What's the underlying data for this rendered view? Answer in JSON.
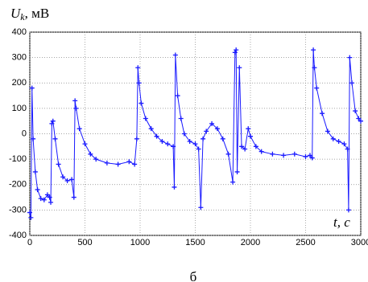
{
  "chart_data": {
    "type": "line",
    "y_label": {
      "symbol": "U",
      "subscript": "k",
      "unit": ", мВ"
    },
    "x_label": "t, c",
    "caption": "б",
    "x": [
      0,
      10,
      20,
      30,
      50,
      70,
      100,
      130,
      160,
      180,
      190,
      200,
      210,
      230,
      260,
      300,
      340,
      380,
      400,
      410,
      420,
      450,
      500,
      550,
      600,
      700,
      800,
      900,
      950,
      970,
      980,
      990,
      1010,
      1050,
      1100,
      1150,
      1200,
      1250,
      1300,
      1310,
      1320,
      1340,
      1370,
      1400,
      1450,
      1500,
      1530,
      1550,
      1570,
      1600,
      1650,
      1700,
      1750,
      1800,
      1840,
      1860,
      1870,
      1880,
      1900,
      1920,
      1950,
      1980,
      2000,
      2050,
      2100,
      2200,
      2300,
      2400,
      2500,
      2540,
      2560,
      2570,
      2580,
      2600,
      2650,
      2700,
      2750,
      2800,
      2850,
      2880,
      2890,
      2900,
      2920,
      2950,
      2980,
      3000
    ],
    "series": [
      {
        "color": "#1a1aff",
        "values": [
          -310,
          -330,
          180,
          -20,
          -150,
          -220,
          -255,
          -260,
          -240,
          -250,
          -270,
          40,
          50,
          -20,
          -120,
          -170,
          -185,
          -180,
          -250,
          130,
          100,
          20,
          -40,
          -80,
          -100,
          -115,
          -120,
          -110,
          -120,
          -20,
          260,
          200,
          120,
          60,
          20,
          -10,
          -30,
          -40,
          -50,
          -210,
          310,
          150,
          60,
          0,
          -30,
          -40,
          -60,
          -290,
          -20,
          10,
          40,
          20,
          -20,
          -80,
          -190,
          320,
          330,
          -150,
          260,
          -50,
          -60,
          20,
          -10,
          -50,
          -70,
          -80,
          -85,
          -80,
          -90,
          -85,
          -95,
          330,
          260,
          180,
          80,
          10,
          -20,
          -30,
          -40,
          -60,
          -300,
          300,
          200,
          90,
          60,
          50
        ]
      }
    ],
    "xlim": [
      0,
      3000
    ],
    "ylim": [
      -400,
      400
    ],
    "xticks": [
      0,
      500,
      1000,
      1500,
      2000,
      2500,
      3000
    ],
    "yticks": [
      -400,
      -300,
      -200,
      -100,
      0,
      100,
      200,
      300,
      400
    ],
    "grid": true
  }
}
